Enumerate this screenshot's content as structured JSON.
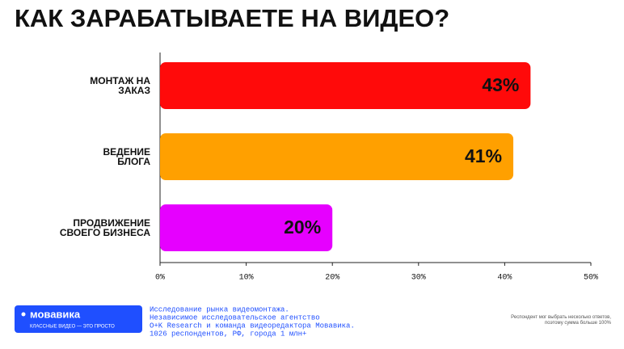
{
  "chart_data": {
    "type": "hbar",
    "title": "КАК ЗАРАБАТЫВАЕТЕ НА ВИДЕО?",
    "categories": [
      "МОНТАЖ НА\nЗАКАЗ",
      "ВЕДЕНИЕ\nБЛОГА",
      "ПРОДВИЖЕНИЕ\nСВОЕГО БИЗНЕСА"
    ],
    "values": [
      43,
      41,
      20
    ],
    "value_labels": [
      "43%",
      "41%",
      "20%"
    ],
    "colors": [
      "#ff0a0a",
      "#ffa000",
      "#e600ff"
    ],
    "xlim": [
      0,
      50
    ],
    "xticks": [
      {
        "value": 0,
        "label": "0%"
      },
      {
        "value": 10,
        "label": "10%"
      },
      {
        "value": 20,
        "label": "20%"
      },
      {
        "value": 30,
        "label": "30%"
      },
      {
        "value": 40,
        "label": "40%"
      },
      {
        "value": 50,
        "label": "50%"
      }
    ],
    "grid": false
  },
  "footer": {
    "logo_name": "мовавика",
    "logo_tagline": "КЛАССНЫЕ ВИДЕО — ЭТО ПРОСТО",
    "source_lines": [
      "Исследование рынка видеомонтажа.",
      "Независимое исследовательское агентство",
      "O+K Research и команда видеоредактора Мовавика.",
      "1026 респондентов, РФ, города 1 млн+"
    ],
    "note": "Респондент мог выбрать несколько ответов, поэтому сумма больше 100%"
  }
}
